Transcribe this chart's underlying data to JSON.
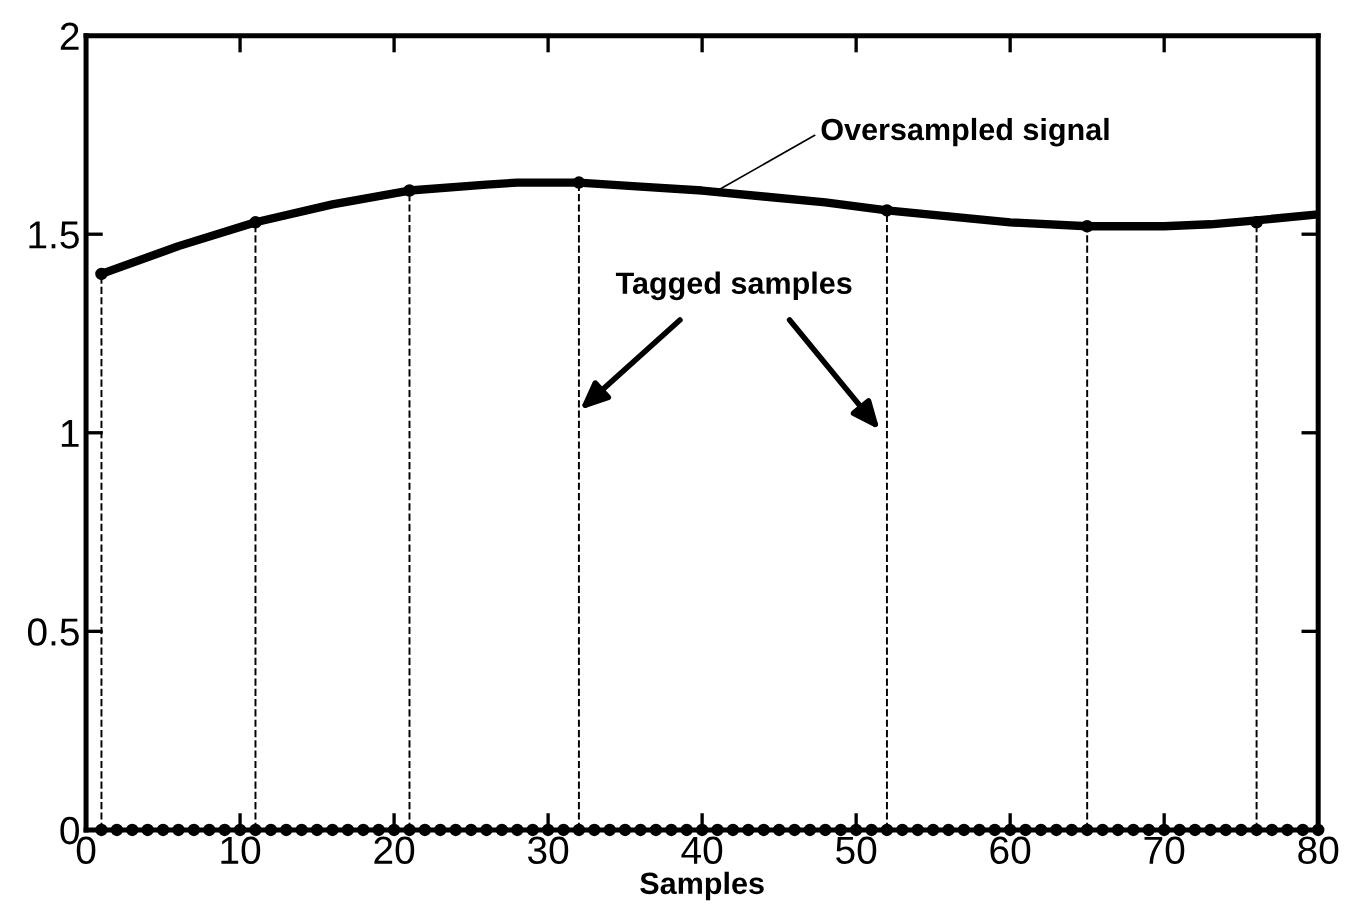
{
  "chart_data": {
    "type": "line",
    "xlabel": "Samples",
    "xlim": [
      0,
      80
    ],
    "xticks": [
      0,
      10,
      20,
      30,
      40,
      50,
      60,
      70,
      80
    ],
    "ylim": [
      0,
      2
    ],
    "yticks": [
      0,
      0.5,
      1,
      1.5,
      2
    ],
    "grid": false,
    "series": [
      {
        "color": "#000000",
        "marker": "none",
        "line_style": "solid",
        "x": [
          1,
          6,
          11,
          16,
          21,
          26,
          28,
          32,
          36,
          40,
          44,
          48,
          52,
          56,
          60,
          65,
          68,
          70,
          73,
          76,
          80
        ],
        "values": [
          1.4,
          1.47,
          1.53,
          1.575,
          1.61,
          1.625,
          1.63,
          1.63,
          1.62,
          1.61,
          1.595,
          1.58,
          1.56,
          1.545,
          1.53,
          1.52,
          1.52,
          1.52,
          1.525,
          1.535,
          1.55
        ]
      },
      {
        "type": "lollipop",
        "color": "#000000",
        "marker": "circle",
        "line_style": "dashed",
        "x": [
          1,
          11,
          21,
          32,
          52,
          65,
          76
        ],
        "values": [
          1.4,
          1.53,
          1.61,
          1.63,
          1.56,
          1.52,
          1.53
        ]
      },
      {
        "type": "scatter",
        "color": "#000000",
        "marker": "circle",
        "x": [
          1,
          2,
          3,
          4,
          5,
          6,
          7,
          8,
          9,
          10,
          11,
          12,
          13,
          14,
          15,
          16,
          17,
          18,
          19,
          20,
          21,
          22,
          23,
          24,
          25,
          26,
          27,
          28,
          29,
          30,
          31,
          32,
          33,
          34,
          35,
          36,
          37,
          38,
          39,
          40,
          41,
          42,
          43,
          44,
          45,
          46,
          47,
          48,
          49,
          50,
          51,
          52,
          53,
          54,
          55,
          56,
          57,
          58,
          59,
          60,
          61,
          62,
          63,
          64,
          65,
          66,
          67,
          68,
          69,
          70,
          71,
          72,
          73,
          74,
          75,
          76,
          77,
          78,
          79,
          80
        ],
        "values": [
          0,
          0,
          0,
          0,
          0,
          0,
          0,
          0,
          0,
          0,
          0,
          0,
          0,
          0,
          0,
          0,
          0,
          0,
          0,
          0,
          0,
          0,
          0,
          0,
          0,
          0,
          0,
          0,
          0,
          0,
          0,
          0,
          0,
          0,
          0,
          0,
          0,
          0,
          0,
          0,
          0,
          0,
          0,
          0,
          0,
          0,
          0,
          0,
          0,
          0,
          0,
          0,
          0,
          0,
          0,
          0,
          0,
          0,
          0,
          0,
          0,
          0,
          0,
          0,
          0,
          0,
          0,
          0,
          0,
          0,
          0,
          0,
          0,
          0,
          0,
          0,
          0,
          0,
          0,
          0
        ]
      }
    ],
    "annotations": [
      {
        "text": "Oversampled signal",
        "x": 41,
        "y": 1.61
      },
      "Tagged samples"
    ]
  }
}
